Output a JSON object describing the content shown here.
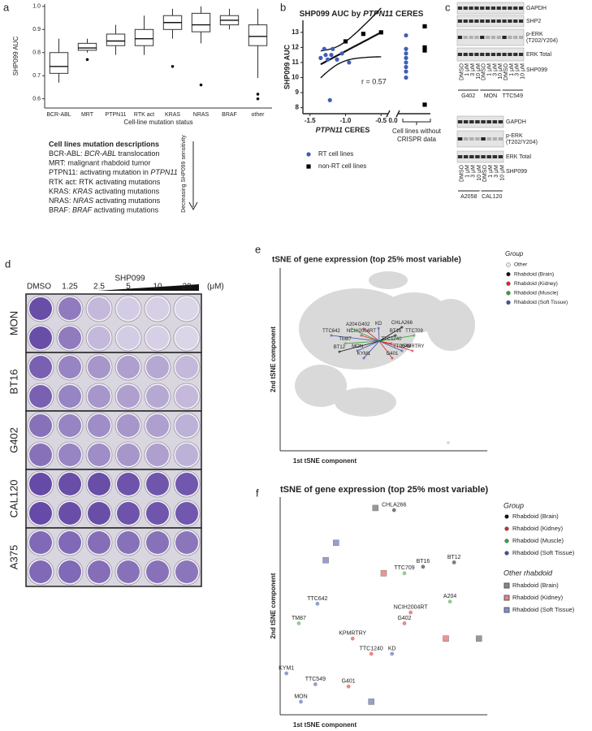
{
  "panel_labels": [
    "a",
    "b",
    "c",
    "d",
    "e",
    "f"
  ],
  "mutation_text": {
    "title": "Cell lines mutation descriptions",
    "lines": [
      {
        "prefix": "BCR-ABL: ",
        "italic": "BCR-ABL",
        "suffix": " translocation"
      },
      {
        "prefix": "MRT: malignant rhabdoid tumor"
      },
      {
        "prefix": "PTPN11: activating mutation in ",
        "italic": "PTPN11"
      },
      {
        "prefix": "RTK act: RTK activating mutations"
      },
      {
        "prefix": "KRAS: ",
        "italic": "KRAS",
        "suffix": " activating mutations"
      },
      {
        "prefix": "NRAS: ",
        "italic": "NRAS",
        "suffix": " activating mutations"
      },
      {
        "prefix": "BRAF: ",
        "italic": "BRAF",
        "suffix": " activating mutations"
      }
    ],
    "arrow_label": "Decreasing SHP099 sensitivity"
  },
  "western": {
    "blot1": {
      "rows": [
        [
          "GAPDH"
        ],
        [
          "SHP2"
        ],
        [
          "p-ERK",
          "(T202/Y204)"
        ],
        [
          "ERK Total"
        ]
      ],
      "treatment": "SHP099",
      "lanes": [
        "DMSO",
        "1 μM",
        "3 μM",
        "10 μM",
        "DMSO",
        "1 μM",
        "3 μM",
        "10 μM",
        "DMSO",
        "1 μM",
        "3 μM",
        "10 μM"
      ],
      "cell_lines": [
        "G402",
        "MON",
        "TTC549"
      ]
    },
    "blot2": {
      "rows": [
        [
          "GAPDH"
        ],
        [
          "p-ERK",
          "(T202/Y204)"
        ],
        [
          "ERK Total"
        ]
      ],
      "treatment": "SHP099",
      "lanes": [
        "DMSO",
        "1 μM",
        "3 μM",
        "10 μM",
        "DMSO",
        "1 μM",
        "3 μM",
        "10 μM"
      ],
      "cell_lines": [
        "A2058",
        "CAL120"
      ]
    }
  },
  "plate": {
    "treatment": "SHP099",
    "conc_labels": [
      "DMSO",
      "1.25",
      "2.5",
      "5",
      "10",
      "20"
    ],
    "unit": "(μM)",
    "cell_lines": [
      "MON",
      "BT16",
      "G402",
      "CAL120",
      "A375"
    ]
  },
  "chart_data": [
    {
      "type": "box",
      "ylabel": "SHP099 AUC",
      "xlabel": "Cell-line mutation status",
      "categories": [
        "BCR-ABL",
        "MRT",
        "PTPN11",
        "RTK act",
        "KRAS",
        "NRAS",
        "BRAF",
        "other"
      ],
      "boxes": [
        {
          "whislo": 0.67,
          "q1": 0.71,
          "med": 0.74,
          "q3": 0.8,
          "whishi": 0.86
        },
        {
          "whislo": 0.8,
          "q1": 0.81,
          "med": 0.82,
          "q3": 0.84,
          "whishi": 0.86,
          "fliers": [
            0.77
          ]
        },
        {
          "whislo": 0.79,
          "q1": 0.83,
          "med": 0.85,
          "q3": 0.88,
          "whishi": 0.92
        },
        {
          "whislo": 0.79,
          "q1": 0.83,
          "med": 0.86,
          "q3": 0.9,
          "whishi": 0.96
        },
        {
          "whislo": 0.86,
          "q1": 0.9,
          "med": 0.93,
          "q3": 0.96,
          "whishi": 0.99,
          "fliers": [
            0.74
          ]
        },
        {
          "whislo": 0.84,
          "q1": 0.89,
          "med": 0.92,
          "q3": 0.97,
          "whishi": 1.0,
          "fliers": [
            0.66
          ]
        },
        {
          "whislo": 0.9,
          "q1": 0.92,
          "med": 0.94,
          "q3": 0.96,
          "whishi": 0.99
        },
        {
          "whislo": 0.69,
          "q1": 0.83,
          "med": 0.87,
          "q3": 0.92,
          "whishi": 0.99,
          "fliers": [
            0.62,
            0.6
          ]
        }
      ],
      "ylim": [
        0.56,
        1.01
      ],
      "yticks": [
        0.6,
        0.7,
        0.8,
        0.9,
        {
          "value": 1,
          "label": "1.0"
        }
      ]
    },
    {
      "type": "scatter",
      "title_parts": [
        "SHP099 AUC by ",
        "PTPN11",
        " CERES"
      ],
      "xlabel_parts": [
        "PTPN11",
        " CERES"
      ],
      "ylabel": "SHP099 AUC",
      "xlim": [
        -1.6,
        -0.4
      ],
      "xticks": [
        -1.5,
        {
          "value": -1,
          "label": "-1.0"
        },
        -0.5
      ],
      "break_tick_label": "0.0",
      "ylim": [
        7.6,
        13.8
      ],
      "yticks": [
        8,
        9,
        10,
        11,
        12,
        13
      ],
      "annotation": "r = 0.57",
      "no_crispr_label": [
        "Cell lines without",
        "CRISPR data"
      ],
      "series": [
        {
          "name": "RT cell lines",
          "color": "#3f5fb5",
          "marker": "circle",
          "x": [
            -1.35,
            -1.3,
            -1.28,
            -1.25,
            -1.2,
            -1.18,
            -1.12,
            -1.05,
            -0.95,
            -1.22
          ],
          "y": [
            11.3,
            11.9,
            11.5,
            11.2,
            11.5,
            11.9,
            11.2,
            11.6,
            11.0,
            8.5
          ],
          "no_crispr": [
            12.8,
            11.9,
            11.6,
            11.3,
            11.0,
            10.7,
            10.4,
            10.0
          ]
        },
        {
          "name": "non-RT cell lines",
          "color": "#000000",
          "marker": "square",
          "x": [
            -1.0,
            -0.75,
            -0.5
          ],
          "y": [
            12.4,
            12.9,
            13.0
          ],
          "no_crispr": [
            13.4,
            12.0,
            11.8,
            8.2
          ]
        }
      ]
    },
    {
      "type": "tsne",
      "title": "tSNE of gene expression (top 25% most variable)",
      "xlabel": "1st tSNE component",
      "ylabel": "2nd tSNE component",
      "legend_title": "Group",
      "xlim": [
        0,
        100
      ],
      "ylim": [
        0,
        100
      ],
      "series": [
        {
          "name": "Other",
          "color": "#eeeeee"
        },
        {
          "name": "Rhabdoid (Brain)",
          "color": "#111111",
          "labels": [
            "CHLA266",
            "BT16",
            "BT12"
          ],
          "x": [
            58.8,
            55.7,
            28.6
          ],
          "y": [
            67.6,
            63.1,
            54.2
          ]
        },
        {
          "name": "Rhabdoid (Kidney)",
          "color": "#d8262a",
          "labels": [
            "G402",
            "NCIH2004RT",
            "TTC1240",
            "KPMRTRY",
            "G401"
          ],
          "x": [
            40.4,
            39.2,
            53.7,
            63.9,
            54.1
          ],
          "y": [
            66.7,
            63.1,
            58.7,
            54.7,
            50.7
          ]
        },
        {
          "name": "Rhabdoid (Muscle)",
          "color": "#36a336",
          "labels": [
            "A204",
            "TTC709",
            "TM87"
          ],
          "x": [
            34.5,
            64.7,
            31.4
          ],
          "y": [
            66.7,
            63.1,
            58.7
          ]
        },
        {
          "name": "Rhabdoid (Soft Tissue)",
          "color": "#3a4fa8",
          "labels": [
            "KD",
            "TTC642",
            "MON",
            "KYM1",
            "TTC549"
          ],
          "x": [
            47.5,
            24.7,
            37.3,
            40.4,
            58.8
          ],
          "y": [
            67.1,
            63.1,
            54.7,
            50.7,
            54.7
          ]
        }
      ]
    },
    {
      "type": "tsne",
      "title": "tSNE of gene expression (top 25% most variable)",
      "xlabel": "1st tSNE component",
      "ylabel": "2nd tSNE component",
      "legend_title": "Group",
      "xlim": [
        0,
        100
      ],
      "ylim": [
        0,
        100
      ],
      "series": [
        {
          "name": "Rhabdoid (Brain)",
          "color": "#111111",
          "labels": [
            "CHLA266",
            "BT16",
            "BT12"
          ],
          "x": [
            55,
            69,
            84
          ],
          "y": [
            94,
            68,
            70
          ]
        },
        {
          "name": "Rhabdoid (Kidney)",
          "color": "#d8262a",
          "labels": [
            "NCIH2004RT",
            "G402",
            "KPMRTRY",
            "TTC1240",
            "G401"
          ],
          "x": [
            63,
            60,
            35,
            44,
            33
          ],
          "y": [
            47,
            42,
            35,
            28,
            13
          ]
        },
        {
          "name": "Rhabdoid (Muscle)",
          "color": "#36a336",
          "labels": [
            "TTC709",
            "A204",
            "TM87"
          ],
          "x": [
            60,
            82,
            9
          ],
          "y": [
            65,
            52,
            42
          ]
        },
        {
          "name": "Rhabdoid (Soft Tissue)",
          "color": "#3a4fa8",
          "labels": [
            "TTC642",
            "KD",
            "KYM1",
            "TTC549",
            "MON"
          ],
          "x": [
            18,
            54,
            3,
            17,
            10
          ],
          "y": [
            51,
            28,
            19,
            14,
            6
          ]
        }
      ],
      "other_title": "Other rhabdoid",
      "other_series": [
        {
          "name": "Rhabdoid (Brain)",
          "color": "#555555",
          "x": [
            46,
            96
          ],
          "y": [
            95,
            35
          ]
        },
        {
          "name": "Rhabdoid (Kidney)",
          "color": "#e05050",
          "x": [
            50,
            80
          ],
          "y": [
            65,
            35
          ]
        },
        {
          "name": "Rhabdoid (Soft Tissue)",
          "color": "#5060b8",
          "x": [
            27,
            22,
            44
          ],
          "y": [
            79,
            71,
            6
          ]
        }
      ]
    }
  ]
}
